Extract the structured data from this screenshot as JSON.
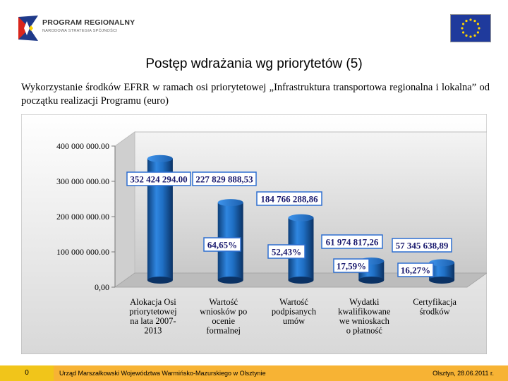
{
  "header": {
    "logo_title": "PROGRAM REGIONALNY",
    "logo_subtitle": "NARODOWA STRATEGIA SPÓJNOŚCI",
    "title": "Postęp wdrażania wg priorytetów (5)",
    "subtitle": "Wykorzystanie środków EFRR w ramach osi priorytetowej „Infrastruktura transportowa regionalna i lokalna” od początku realizacji Programu (euro)"
  },
  "colors": {
    "bar": "#1f6fc4",
    "bar_dark": "#0d3f7a",
    "label_border": "#2e6fd0",
    "footer": "#f7b334",
    "footer_accent": "#f1c51a",
    "eu_blue": "#1f3a9c",
    "eu_star": "#ffd400"
  },
  "icons": [
    "program-regionalny-logo-icon",
    "eu-flag-icon"
  ],
  "chart_data": {
    "type": "bar",
    "categories": [
      [
        "Alokacja Osi",
        "priorytetowej",
        "na lata 2007-",
        "2013"
      ],
      [
        "Wartość",
        "wniosków po",
        "ocenie",
        "formalnej"
      ],
      [
        "Wartość",
        "podpisanych",
        "umów"
      ],
      [
        "Wydatki",
        "kwalifikowane",
        "we wnioskach",
        "o płatność"
      ],
      [
        "Certyfikacja",
        "środków"
      ]
    ],
    "values": [
      352424294.0,
      227829888.53,
      184766288.86,
      61974817.26,
      57345638.89
    ],
    "value_labels": [
      "352 424 294.00",
      "227 829 888,53",
      "184 766 288,86",
      "61 974 817,26",
      "57 345 638,89"
    ],
    "percent_labels": [
      "",
      "64,65%",
      "52,43%",
      "17,59%",
      "16,27%"
    ],
    "ylim": [
      0,
      400000000
    ],
    "yticks": [
      0,
      100000000,
      200000000,
      300000000,
      400000000
    ],
    "ytick_labels": [
      "0,00",
      "100 000 000.00",
      "200 000 000.00",
      "300 000 000.00",
      "400 000 000.00"
    ],
    "grid": false,
    "legend": "none"
  },
  "footer": {
    "page_number": "0",
    "institution": "Urząd Marszałkowski Województwa Warmińsko-Mazurskiego w Olsztynie",
    "date": "Olsztyn, 28.06.2011 r."
  }
}
